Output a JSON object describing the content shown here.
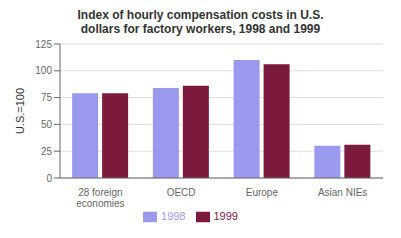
{
  "chart_data": {
    "type": "bar",
    "title": "Index of hourly compensation costs in U.S.\ndollars for factory workers, 1998 and 1999",
    "categories": [
      "28 foreign\neconomies",
      "OECD",
      "Europe",
      "Asian NIEs"
    ],
    "series": [
      {
        "name": "1998",
        "color": "#9999ee",
        "values": [
          79,
          84,
          110,
          30
        ]
      },
      {
        "name": "1999",
        "color": "#7b1a3c",
        "values": [
          79,
          86,
          106,
          31
        ]
      }
    ],
    "ylabel": "U.S.=100",
    "ylim": [
      0,
      125
    ],
    "yticks": [
      0,
      25,
      50,
      75,
      100,
      125
    ],
    "grid": true,
    "legend": "bottom"
  }
}
